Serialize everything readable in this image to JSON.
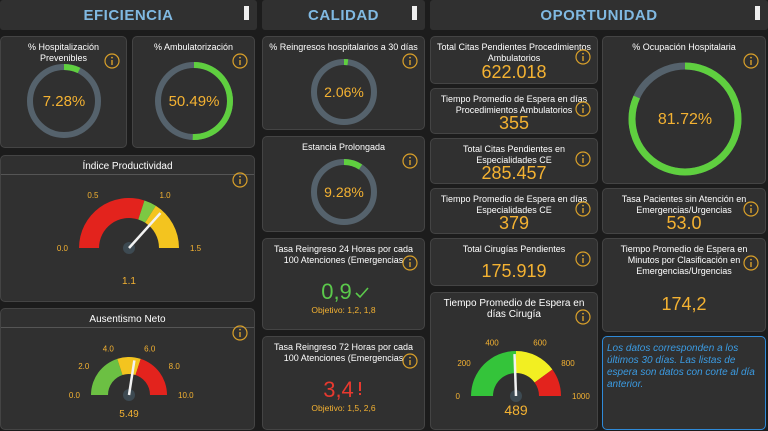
{
  "eficiencia": {
    "title": "EFICIENCIA",
    "hospitalizacion": {
      "label": "% Hospitalización Prevenibles",
      "value": 7.28,
      "value_label": "7.28%"
    },
    "ambulatorizacion": {
      "label": "% Ambulatorización",
      "value": 50.49,
      "value_label": "50.49%"
    },
    "productividad": {
      "label": "Índice Productividad",
      "value": 1.1,
      "ticks": [
        {
          "value": 0,
          "label": "0.0"
        },
        {
          "value": 0.5,
          "label": "0.5"
        },
        {
          "value": 1,
          "label": "1.0"
        },
        {
          "value": 1.5,
          "label": "1.5"
        }
      ]
    },
    "ausentismo": {
      "label": "Ausentismo Neto",
      "value": 5.49,
      "ticks": [
        {
          "value": 0,
          "label": "0.0"
        },
        {
          "value": 2,
          "label": "2.0"
        },
        {
          "value": 4,
          "label": "4.0"
        },
        {
          "value": 6,
          "label": "6.0"
        },
        {
          "value": 8,
          "label": "8.0"
        },
        {
          "value": 10,
          "label": "10.0"
        }
      ]
    }
  },
  "calidad": {
    "title": "CALIDAD",
    "reingresos": {
      "label": "% Reingresos hospitalarios a 30 días",
      "value": 2.06,
      "value_label": "2.06%"
    },
    "estancia": {
      "label": "Estancia Prolongada",
      "value": 9.28,
      "value_label": "9.28%"
    },
    "reingreso24": {
      "label": "Tasa Reingreso 24 Horas por cada 100 Atenciones (Emergencias",
      "value": "0,9",
      "objetivo": "Objetivo: 1,2, 1,8"
    },
    "reingreso72": {
      "label": "Tasa Reingreso 72 Horas por cada 100 Atenciones (Emergencias",
      "value": "3,4",
      "objetivo": "Objetivo: 1,5, 2,6"
    }
  },
  "oportunidad": {
    "title": "OPORTUNIDAD",
    "citas_procedimientos": {
      "label": "Total Citas Pendientes Procedimientos Ambulatorios",
      "value": "622.018"
    },
    "espera_procedimientos": {
      "label": "Tiempo Promedio de Espera en días Procedimientos Ambulatorios",
      "value": "355"
    },
    "citas_especialidades": {
      "label": "Total Citas Pendientes en Especialidades CE",
      "value": "285.457"
    },
    "espera_especialidades": {
      "label": "Tiempo Promedio de Espera en días Especialidades CE",
      "value": "379"
    },
    "cirugias": {
      "label": "Total Cirugías Pendientes",
      "value": "175.919"
    },
    "espera_cirugia": {
      "label": "Tiempo Promedio de Espera en días Cirugía",
      "value": 489,
      "ticks": [
        0,
        200,
        400,
        600,
        800,
        1000
      ]
    },
    "ocupacion": {
      "label": "% Ocupación Hospitalaria",
      "value": 81.72,
      "value_label": "81.72%"
    },
    "sin_atencion": {
      "label": "Tasa Pacientes sin Atención en Emergencias/Urgencias",
      "value": "53.0"
    },
    "espera_emergencias": {
      "label": "Tiempo Promedio de Espera en Minutos por Clasificación en Emergencias/Urgencias",
      "value": "174,2"
    },
    "nota": "Los datos corresponden a los últimos 30 días. Las listas de espera son datos con corte al día anterior."
  }
}
